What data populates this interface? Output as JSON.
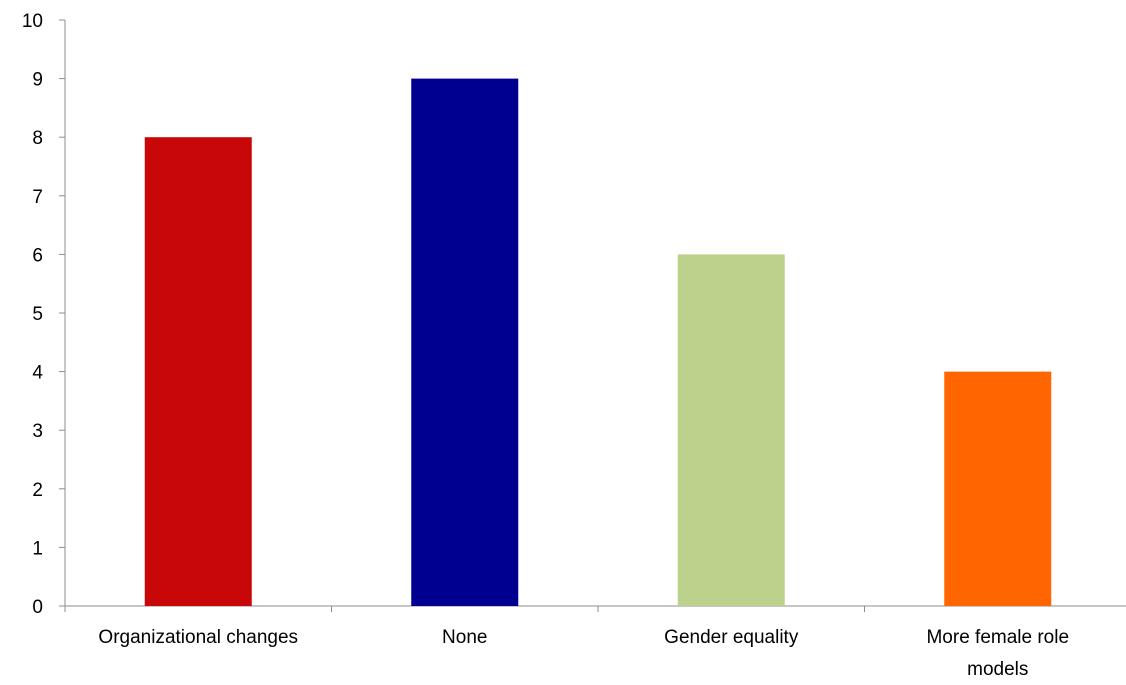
{
  "chart_data": {
    "type": "bar",
    "title": "",
    "xlabel": "",
    "ylabel": "",
    "categories": [
      [
        "Organizational changes"
      ],
      [
        "None"
      ],
      [
        "Gender equality"
      ],
      [
        "More female role",
        "models"
      ]
    ],
    "values": [
      8,
      9,
      6,
      4
    ],
    "colors": [
      "#c80808",
      "#000090",
      "#bcd28c",
      "#ff6600"
    ],
    "ylim": [
      0,
      10
    ],
    "yticks": [
      "0",
      "1",
      "2",
      "3",
      "4",
      "5",
      "6",
      "7",
      "8",
      "9",
      "10"
    ],
    "grid": false,
    "legend": "none"
  }
}
